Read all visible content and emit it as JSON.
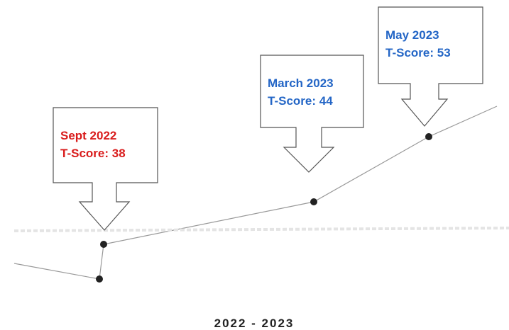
{
  "callouts": [
    {
      "date": "Sept 2022",
      "score": "T-Score: 38",
      "color": "#d91c1c"
    },
    {
      "date": "March 2023",
      "score": "T-Score: 44",
      "color": "#2466c6"
    },
    {
      "date": "May 2023",
      "score": "T-Score: 53",
      "color": "#2466c6"
    }
  ],
  "axis_label": "2022 - 2023"
}
